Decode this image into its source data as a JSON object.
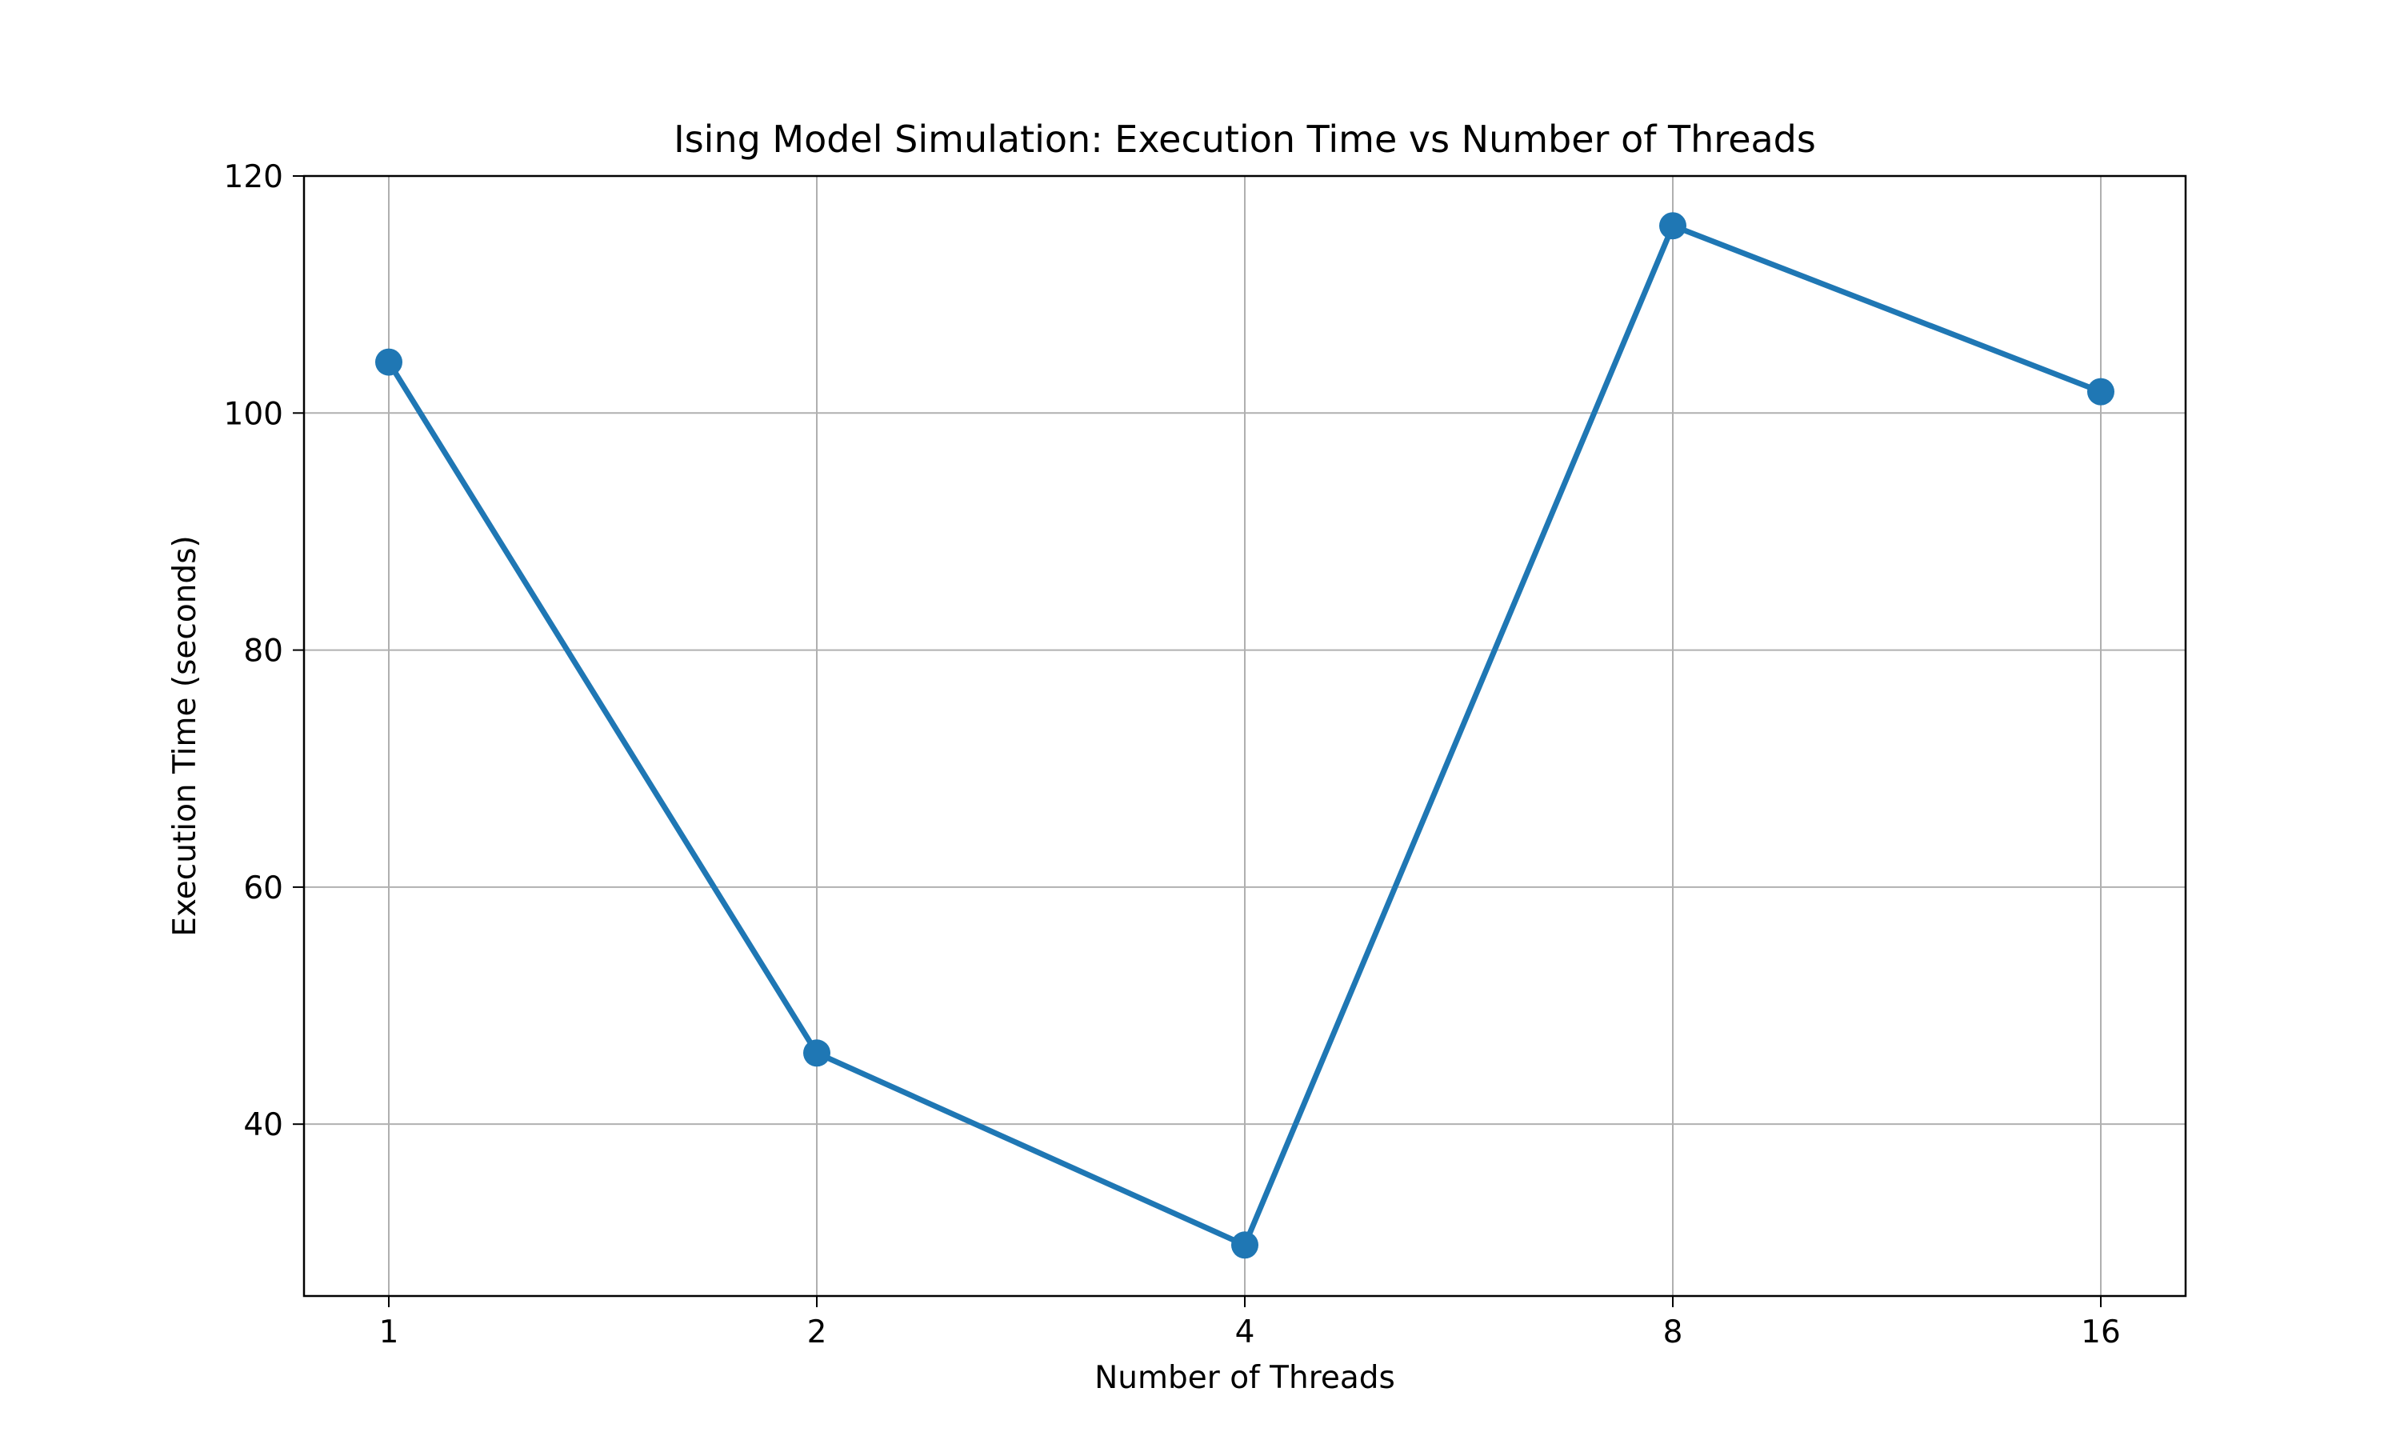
{
  "chart_data": {
    "type": "line",
    "title": "Ising Model Simulation: Execution Time vs Number of Threads",
    "xlabel": "Number of Threads",
    "ylabel": "Execution Time (seconds)",
    "categories": [
      "1",
      "2",
      "4",
      "8",
      "16"
    ],
    "series": [
      {
        "values": [
          104.3,
          46.0,
          29.8,
          115.8,
          101.8
        ],
        "color": "#1f77b4"
      }
    ],
    "yticks": [
      40,
      60,
      80,
      100,
      120
    ],
    "ylim": [
      25.5,
      120
    ],
    "grid": true,
    "legend": "none"
  }
}
